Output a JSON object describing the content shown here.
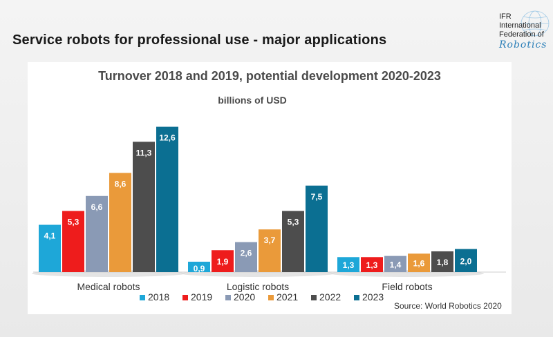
{
  "slide_title": "Service robots for professional use - major applications",
  "logo": {
    "lines": [
      "IFR",
      "International",
      "Federation of"
    ],
    "script": "Robotics",
    "icon": "globe-icon"
  },
  "source": "Source: World Robotics 2020",
  "chart_data": {
    "type": "bar",
    "title": "Turnover 2018 and 2019, potential development 2020-2023",
    "subtitle": "billions of USD",
    "xlabel": "",
    "ylabel": "",
    "ylim": [
      0,
      14
    ],
    "categories": [
      "Medical robots",
      "Logistic robots",
      "Field robots"
    ],
    "series": [
      {
        "name": "2018",
        "color": "#1ea7d8",
        "values": [
          4.1,
          0.9,
          1.3
        ],
        "labels": [
          "4,1",
          "0,9",
          "1,3"
        ]
      },
      {
        "name": "2019",
        "color": "#ee1c1c",
        "values": [
          5.3,
          1.9,
          1.3
        ],
        "labels": [
          "5,3",
          "1,9",
          "1,3"
        ]
      },
      {
        "name": "2020",
        "color": "#8a9ab5",
        "values": [
          6.6,
          2.6,
          1.4
        ],
        "labels": [
          "6,6",
          "2,6",
          "1,4"
        ]
      },
      {
        "name": "2021",
        "color": "#ea9a3a",
        "values": [
          8.6,
          3.7,
          1.6
        ],
        "labels": [
          "8,6",
          "3,7",
          "1,6"
        ]
      },
      {
        "name": "2022",
        "color": "#4d4d4d",
        "values": [
          11.3,
          5.3,
          1.8
        ],
        "labels": [
          "11,3",
          "5,3",
          "1,8"
        ]
      },
      {
        "name": "2023",
        "color": "#0b6f92",
        "values": [
          12.6,
          7.5,
          2.0
        ],
        "labels": [
          "12,6",
          "7,5",
          "2,0"
        ]
      }
    ],
    "legend_position": "bottom"
  }
}
